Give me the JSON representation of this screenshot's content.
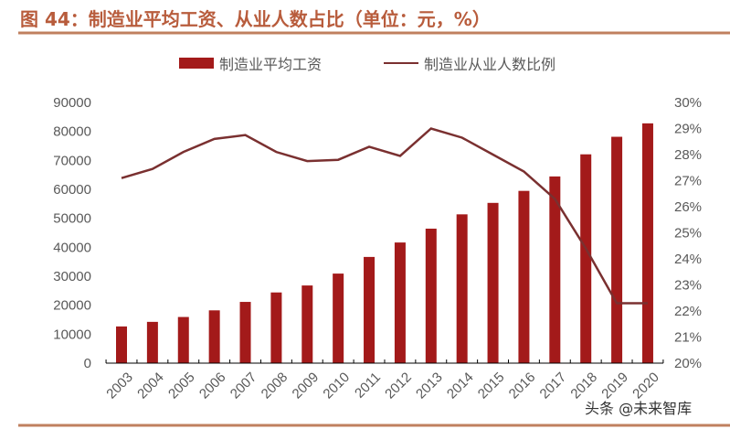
{
  "title": "图 44：制造业平均工资、从业人数占比（单位：元，%）",
  "watermark": "头条 @未来智库",
  "colors": {
    "title": "#b85c3c",
    "rule": "#c0805f",
    "bar": "#a31a1a",
    "line": "#7a3030"
  },
  "chart_data": {
    "type": "bar+line",
    "categories": [
      "2003",
      "2004",
      "2005",
      "2006",
      "2007",
      "2008",
      "2009",
      "2010",
      "2011",
      "2012",
      "2013",
      "2014",
      "2015",
      "2016",
      "2017",
      "2018",
      "2019",
      "2020"
    ],
    "series": [
      {
        "name": "制造业平均工资",
        "type": "bar",
        "axis": "left",
        "values": [
          12671,
          14251,
          15934,
          18225,
          21144,
          24404,
          26810,
          30916,
          36665,
          41650,
          46431,
          51369,
          55324,
          59470,
          64452,
          72088,
          78147,
          82783
        ]
      },
      {
        "name": "制造业从业人数比例",
        "type": "line",
        "axis": "right",
        "values": [
          27.1,
          27.45,
          28.1,
          28.6,
          28.75,
          28.1,
          27.75,
          27.8,
          28.3,
          27.95,
          29.0,
          28.65,
          28.0,
          27.35,
          26.3,
          24.4,
          22.3,
          22.3
        ]
      }
    ],
    "y_left": {
      "range": [
        0,
        90000
      ],
      "ticks": [
        "0",
        "10000",
        "20000",
        "30000",
        "40000",
        "50000",
        "60000",
        "70000",
        "80000",
        "90000"
      ]
    },
    "y_right": {
      "range": [
        20,
        30
      ],
      "ticks": [
        "20%",
        "21%",
        "22%",
        "23%",
        "24%",
        "25%",
        "26%",
        "27%",
        "28%",
        "29%",
        "30%"
      ]
    },
    "legend_position": "top",
    "grid": false
  }
}
